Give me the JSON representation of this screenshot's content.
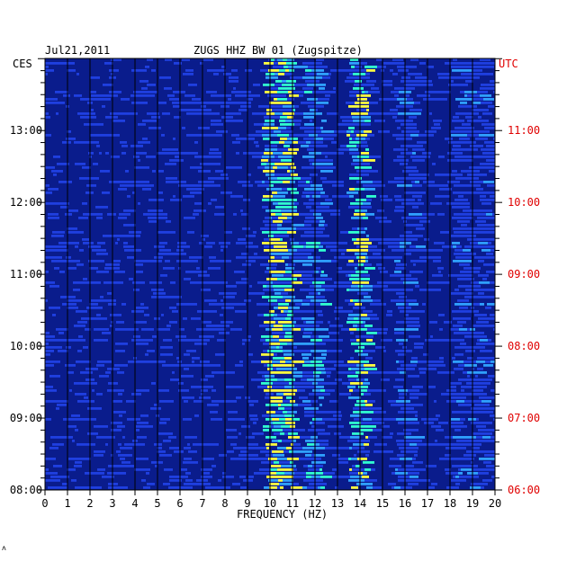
{
  "header": {
    "date": "Jul21,2011",
    "station": "ZUGS HHZ BW 01 (Zugspitze)",
    "left_zone": "CES",
    "right_zone": "UTC"
  },
  "chart_data": {
    "type": "heatmap",
    "title": "ZUGS HHZ BW 01 (Zugspitze)",
    "date": "Jul21,2011",
    "xlabel": "FREQUENCY (HZ)",
    "xlim": [
      0,
      20
    ],
    "x_ticks": [
      "0",
      "1",
      "2",
      "3",
      "4",
      "5",
      "6",
      "7",
      "8",
      "9",
      "10",
      "11",
      "12",
      "13",
      "14",
      "15",
      "16",
      "17",
      "18",
      "19",
      "20"
    ],
    "y_left_label": "CES",
    "y_right_label": "UTC",
    "y_left_ticks": [
      "13:00",
      "12:00",
      "11:00",
      "10:00",
      "09:00",
      "08:00"
    ],
    "y_right_ticks": [
      "11:00",
      "10:00",
      "09:00",
      "08:00",
      "07:00",
      "06:00"
    ],
    "time_range_ces": [
      "08:00",
      "13:50"
    ],
    "colors": {
      "background": "#0a1c8c",
      "grid": "#000000",
      "right_axis": "#e00000",
      "scale": [
        "#0a1c8c",
        "#1f3fe0",
        "#2fa0ff",
        "#30ffd0",
        "#ffff40",
        "#ff3000"
      ]
    },
    "notes": "Spectrogram; energy concentrated near 9.5-11 Hz and 13.5-14.2 Hz, broadband lines across full frequency range."
  }
}
